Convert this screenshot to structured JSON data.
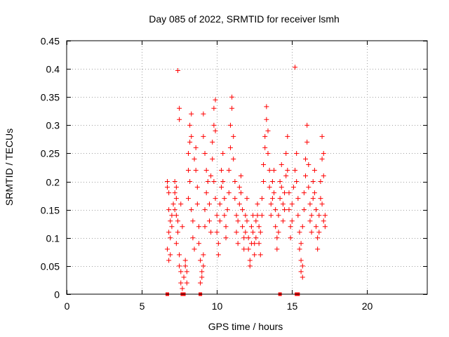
{
  "chart_data": {
    "type": "scatter",
    "title": "Day 085 of 2022, SRMTID for receiver lsmh",
    "xlabel": "GPS time / hours",
    "ylabel": "SRMTID / TECUs",
    "xlim": [
      0,
      24
    ],
    "ylim": [
      0,
      0.45
    ],
    "xticks": [
      0,
      5,
      10,
      15,
      20
    ],
    "xtick_labels": [
      "0",
      "5",
      "10",
      "15",
      "20"
    ],
    "yticks": [
      0,
      0.05,
      0.1,
      0.15,
      0.2,
      0.25,
      0.3,
      0.35,
      0.4,
      0.45
    ],
    "ytick_labels": [
      "0",
      "0.05",
      "0.1",
      "0.15",
      "0.2",
      "0.25",
      "0.3",
      "0.35",
      "0.4",
      "0.45"
    ],
    "grid": true,
    "marker": "plus",
    "color": "#ff0000",
    "series": [
      {
        "name": "SRMTID",
        "points": [
          [
            6.7,
            0.0
          ],
          [
            7.7,
            0.0
          ],
          [
            7.8,
            0.0
          ],
          [
            8.9,
            0.0
          ],
          [
            14.2,
            0.0
          ],
          [
            15.3,
            0.0
          ],
          [
            15.4,
            0.0
          ],
          [
            6.7,
            0.2
          ],
          [
            6.7,
            0.19
          ],
          [
            6.8,
            0.18
          ],
          [
            6.8,
            0.15
          ],
          [
            6.9,
            0.13
          ],
          [
            6.8,
            0.11
          ],
          [
            6.7,
            0.08
          ],
          [
            6.8,
            0.06
          ],
          [
            6.9,
            0.07
          ],
          [
            6.9,
            0.1
          ],
          [
            7.0,
            0.12
          ],
          [
            7.0,
            0.14
          ],
          [
            7.1,
            0.16
          ],
          [
            7.2,
            0.18
          ],
          [
            7.2,
            0.2
          ],
          [
            7.3,
            0.19
          ],
          [
            7.3,
            0.17
          ],
          [
            7.2,
            0.15
          ],
          [
            7.4,
            0.13
          ],
          [
            7.4,
            0.11
          ],
          [
            7.3,
            0.09
          ],
          [
            7.5,
            0.07
          ],
          [
            7.5,
            0.05
          ],
          [
            7.6,
            0.04
          ],
          [
            7.6,
            0.02
          ],
          [
            7.7,
            0.01
          ],
          [
            7.8,
            0.03
          ],
          [
            7.9,
            0.05
          ],
          [
            8.0,
            0.04
          ],
          [
            8.0,
            0.02
          ],
          [
            7.9,
            0.06
          ],
          [
            7.5,
            0.33
          ],
          [
            7.5,
            0.31
          ],
          [
            7.4,
            0.397
          ],
          [
            7.3,
            0.14
          ],
          [
            7.6,
            0.16
          ],
          [
            7.7,
            0.12
          ],
          [
            8.1,
            0.22
          ],
          [
            8.1,
            0.25
          ],
          [
            8.2,
            0.27
          ],
          [
            8.2,
            0.3
          ],
          [
            8.3,
            0.32
          ],
          [
            8.3,
            0.28
          ],
          [
            8.2,
            0.2
          ],
          [
            8.1,
            0.17
          ],
          [
            8.3,
            0.15
          ],
          [
            8.4,
            0.13
          ],
          [
            8.4,
            0.1
          ],
          [
            8.5,
            0.08
          ],
          [
            8.5,
            0.24
          ],
          [
            8.6,
            0.26
          ],
          [
            8.6,
            0.22
          ],
          [
            8.7,
            0.19
          ],
          [
            8.7,
            0.16
          ],
          [
            8.8,
            0.12
          ],
          [
            8.8,
            0.09
          ],
          [
            8.9,
            0.06
          ],
          [
            9.0,
            0.04
          ],
          [
            9.0,
            0.03
          ],
          [
            9.1,
            0.05
          ],
          [
            9.1,
            0.07
          ],
          [
            8.9,
            0.02
          ],
          [
            9.2,
            0.12
          ],
          [
            9.2,
            0.15
          ],
          [
            9.3,
            0.18
          ],
          [
            9.3,
            0.22
          ],
          [
            9.2,
            0.25
          ],
          [
            9.1,
            0.28
          ],
          [
            9.1,
            0.32
          ],
          [
            9.4,
            0.2
          ],
          [
            9.5,
            0.16
          ],
          [
            9.5,
            0.13
          ],
          [
            9.6,
            0.11
          ],
          [
            9.6,
            0.21
          ],
          [
            9.7,
            0.24
          ],
          [
            9.7,
            0.27
          ],
          [
            9.8,
            0.3
          ],
          [
            9.8,
            0.33
          ],
          [
            9.9,
            0.345
          ],
          [
            9.9,
            0.29
          ],
          [
            9.8,
            0.2
          ],
          [
            9.9,
            0.17
          ],
          [
            10.0,
            0.14
          ],
          [
            10.0,
            0.11
          ],
          [
            10.1,
            0.09
          ],
          [
            10.1,
            0.07
          ],
          [
            10.2,
            0.13
          ],
          [
            10.2,
            0.16
          ],
          [
            10.3,
            0.19
          ],
          [
            10.3,
            0.22
          ],
          [
            10.4,
            0.25
          ],
          [
            10.4,
            0.2
          ],
          [
            10.5,
            0.17
          ],
          [
            10.5,
            0.14
          ],
          [
            10.6,
            0.12
          ],
          [
            10.6,
            0.1
          ],
          [
            10.7,
            0.15
          ],
          [
            10.8,
            0.18
          ],
          [
            10.8,
            0.22
          ],
          [
            10.9,
            0.26
          ],
          [
            10.9,
            0.3
          ],
          [
            11.0,
            0.33
          ],
          [
            11.0,
            0.35
          ],
          [
            11.1,
            0.28
          ],
          [
            11.1,
            0.24
          ],
          [
            11.2,
            0.2
          ],
          [
            11.2,
            0.17
          ],
          [
            11.3,
            0.14
          ],
          [
            11.3,
            0.11
          ],
          [
            11.4,
            0.09
          ],
          [
            11.4,
            0.13
          ],
          [
            11.5,
            0.16
          ],
          [
            11.5,
            0.19
          ],
          [
            11.6,
            0.21
          ],
          [
            11.6,
            0.18
          ],
          [
            11.7,
            0.15
          ],
          [
            11.7,
            0.12
          ],
          [
            11.8,
            0.1
          ],
          [
            11.8,
            0.08
          ],
          [
            11.9,
            0.11
          ],
          [
            11.9,
            0.14
          ],
          [
            12.0,
            0.17
          ],
          [
            12.0,
            0.13
          ],
          [
            12.1,
            0.1
          ],
          [
            12.1,
            0.08
          ],
          [
            12.2,
            0.06
          ],
          [
            12.2,
            0.05
          ],
          [
            12.3,
            0.09
          ],
          [
            12.3,
            0.12
          ],
          [
            12.4,
            0.14
          ],
          [
            12.4,
            0.11
          ],
          [
            12.5,
            0.09
          ],
          [
            12.5,
            0.07
          ],
          [
            12.6,
            0.1
          ],
          [
            12.6,
            0.13
          ],
          [
            12.7,
            0.16
          ],
          [
            12.7,
            0.14
          ],
          [
            12.8,
            0.12
          ],
          [
            12.8,
            0.09
          ],
          [
            12.9,
            0.07
          ],
          [
            12.9,
            0.11
          ],
          [
            13.0,
            0.14
          ],
          [
            13.0,
            0.17
          ],
          [
            13.1,
            0.2
          ],
          [
            13.1,
            0.23
          ],
          [
            13.2,
            0.26
          ],
          [
            13.2,
            0.28
          ],
          [
            13.3,
            0.31
          ],
          [
            13.3,
            0.333
          ],
          [
            13.4,
            0.29
          ],
          [
            13.4,
            0.25
          ],
          [
            13.5,
            0.22
          ],
          [
            13.5,
            0.19
          ],
          [
            13.6,
            0.16
          ],
          [
            13.6,
            0.14
          ],
          [
            13.7,
            0.17
          ],
          [
            13.7,
            0.2
          ],
          [
            13.8,
            0.22
          ],
          [
            13.8,
            0.18
          ],
          [
            13.9,
            0.15
          ],
          [
            13.9,
            0.12
          ],
          [
            14.0,
            0.1
          ],
          [
            14.0,
            0.08
          ],
          [
            14.1,
            0.11
          ],
          [
            14.1,
            0.14
          ],
          [
            14.2,
            0.17
          ],
          [
            14.2,
            0.2
          ],
          [
            14.3,
            0.23
          ],
          [
            14.3,
            0.19
          ],
          [
            14.4,
            0.16
          ],
          [
            14.4,
            0.13
          ],
          [
            14.5,
            0.15
          ],
          [
            14.5,
            0.18
          ],
          [
            14.6,
            0.21
          ],
          [
            14.6,
            0.25
          ],
          [
            14.7,
            0.28
          ],
          [
            14.7,
            0.22
          ],
          [
            14.8,
            0.18
          ],
          [
            14.8,
            0.15
          ],
          [
            14.9,
            0.12
          ],
          [
            14.9,
            0.1
          ],
          [
            15.0,
            0.13
          ],
          [
            15.0,
            0.16
          ],
          [
            15.1,
            0.19
          ],
          [
            15.2,
            0.403
          ],
          [
            15.2,
            0.22
          ],
          [
            15.3,
            0.25
          ],
          [
            15.3,
            0.2
          ],
          [
            15.4,
            0.17
          ],
          [
            15.4,
            0.14
          ],
          [
            15.5,
            0.11
          ],
          [
            15.5,
            0.08
          ],
          [
            15.6,
            0.06
          ],
          [
            15.6,
            0.04
          ],
          [
            15.7,
            0.03
          ],
          [
            15.7,
            0.05
          ],
          [
            15.6,
            0.09
          ],
          [
            15.7,
            0.12
          ],
          [
            15.8,
            0.15
          ],
          [
            15.8,
            0.18
          ],
          [
            15.9,
            0.21
          ],
          [
            15.9,
            0.24
          ],
          [
            16.0,
            0.27
          ],
          [
            16.0,
            0.3
          ],
          [
            16.1,
            0.23
          ],
          [
            16.1,
            0.19
          ],
          [
            16.2,
            0.16
          ],
          [
            16.2,
            0.13
          ],
          [
            16.3,
            0.11
          ],
          [
            16.3,
            0.14
          ],
          [
            16.4,
            0.17
          ],
          [
            16.4,
            0.2
          ],
          [
            16.5,
            0.22
          ],
          [
            16.5,
            0.18
          ],
          [
            16.6,
            0.15
          ],
          [
            16.6,
            0.12
          ],
          [
            16.7,
            0.1
          ],
          [
            16.7,
            0.08
          ],
          [
            16.8,
            0.11
          ],
          [
            16.8,
            0.14
          ],
          [
            16.9,
            0.17
          ],
          [
            16.9,
            0.2
          ],
          [
            17.0,
            0.24
          ],
          [
            17.0,
            0.28
          ],
          [
            17.1,
            0.25
          ],
          [
            17.1,
            0.21
          ],
          [
            17.0,
            0.16
          ],
          [
            17.1,
            0.13
          ],
          [
            17.2,
            0.12
          ],
          [
            17.2,
            0.14
          ]
        ]
      }
    ]
  }
}
